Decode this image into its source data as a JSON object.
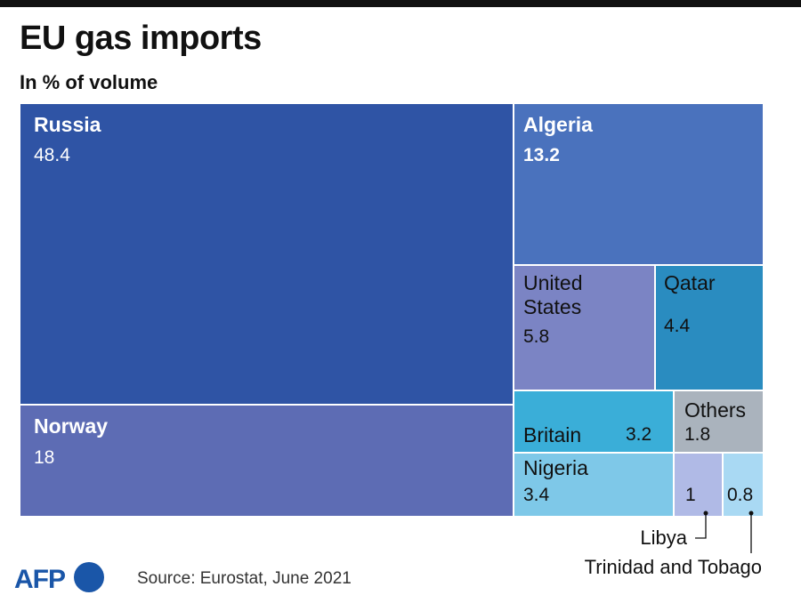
{
  "header": {
    "title": "EU gas imports",
    "subtitle": "In % of volume"
  },
  "footer": {
    "source": "Source: Eurostat, June 2021",
    "logo_text": "AFP"
  },
  "colors": {
    "Russia": "#2f54a5",
    "Norway": "#5d6cb4",
    "Algeria": "#4a72bd",
    "United States": "#7b84c4",
    "Qatar": "#2a8cc0",
    "Britain": "#3aaed8",
    "Others": "#aab3bd",
    "Nigeria": "#7ec8e8",
    "Libya": "#b0bae6",
    "Trinidad and Tobago": "#a9d9f3"
  },
  "chart_data": {
    "type": "treemap",
    "title": "EU gas imports",
    "subtitle": "In % of volume",
    "unit": "%",
    "items": [
      {
        "name": "Russia",
        "value": 48.4,
        "value_label": "48.4"
      },
      {
        "name": "Norway",
        "value": 18,
        "value_label": "18"
      },
      {
        "name": "Algeria",
        "value": 13.2,
        "value_label": "13.2"
      },
      {
        "name": "United States",
        "value": 5.8,
        "value_label": "5.8"
      },
      {
        "name": "Qatar",
        "value": 4.4,
        "value_label": "4.4"
      },
      {
        "name": "Nigeria",
        "value": 3.4,
        "value_label": "3.4"
      },
      {
        "name": "Britain",
        "value": 3.2,
        "value_label": "3.2"
      },
      {
        "name": "Others",
        "value": 1.8,
        "value_label": "1.8"
      },
      {
        "name": "Libya",
        "value": 1,
        "value_label": "1"
      },
      {
        "name": "Trinidad and Tobago",
        "value": 0.8,
        "value_label": "0.8"
      }
    ]
  }
}
